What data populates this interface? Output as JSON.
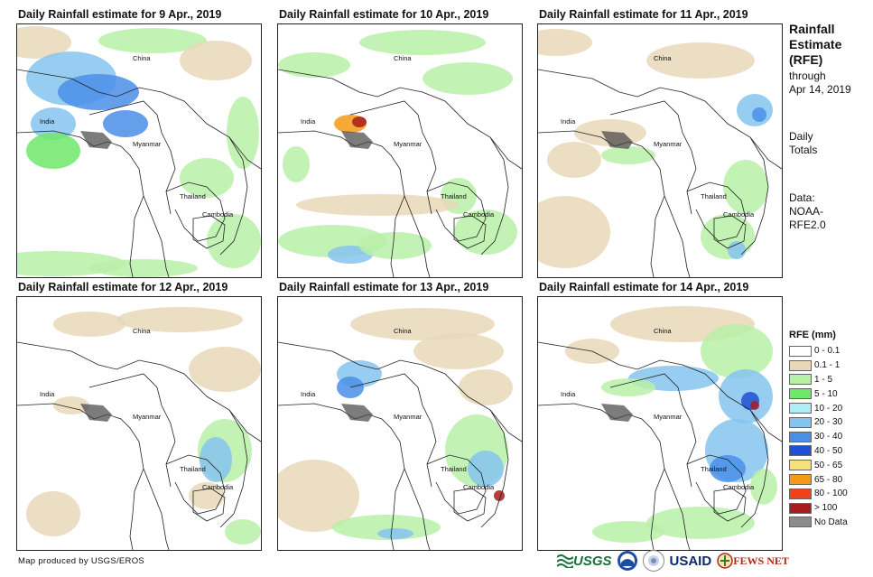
{
  "panels": [
    {
      "title": "Daily Rainfall estimate for 9 Apr., 2019"
    },
    {
      "title": "Daily Rainfall estimate for 10 Apr., 2019"
    },
    {
      "title": "Daily Rainfall estimate for 11 Apr., 2019"
    },
    {
      "title": "Daily Rainfall estimate for 12 Apr., 2019"
    },
    {
      "title": "Daily Rainfall estimate for 13 Apr., 2019"
    },
    {
      "title": "Daily Rainfall estimate for 14 Apr., 2019"
    }
  ],
  "map_labels": {
    "china": "China",
    "india": "India",
    "myanmar": "Myanmar",
    "thailand": "Thailand",
    "cambodia": "Cambodia"
  },
  "sidebar": {
    "title_line1": "Rainfall",
    "title_line2": "Estimate",
    "title_line3": "(RFE)",
    "through": "through",
    "date": "Apr 14, 2019",
    "daily": "Daily",
    "totals": "Totals",
    "data_label": "Data:",
    "source_line1": "NOAA-",
    "source_line2": "RFE2.0"
  },
  "legend": {
    "title": "RFE (mm)",
    "items": [
      {
        "label": "0 - 0.1",
        "color": "#ffffff"
      },
      {
        "label": "0.1 - 1",
        "color": "#e8d8b8"
      },
      {
        "label": "1 - 5",
        "color": "#b8f0a8"
      },
      {
        "label": "5 - 10",
        "color": "#6ee86a"
      },
      {
        "label": "10 - 20",
        "color": "#b0ecf4"
      },
      {
        "label": "20 - 30",
        "color": "#86c4f0"
      },
      {
        "label": "30 - 40",
        "color": "#4a8ee8"
      },
      {
        "label": "40 - 50",
        "color": "#1f4fd4"
      },
      {
        "label": "50 - 65",
        "color": "#f6e07a"
      },
      {
        "label": "65 - 80",
        "color": "#f59a16"
      },
      {
        "label": "80 - 100",
        "color": "#f2401a"
      },
      {
        "label": "> 100",
        "color": "#a81c1c"
      },
      {
        "label": "No Data",
        "color": "#8c8c8c"
      }
    ]
  },
  "credit": "Map produced by USGS/EROS",
  "logos": {
    "usgs": "USGS",
    "usaid": "USAID",
    "fews": "FEWS NET"
  }
}
